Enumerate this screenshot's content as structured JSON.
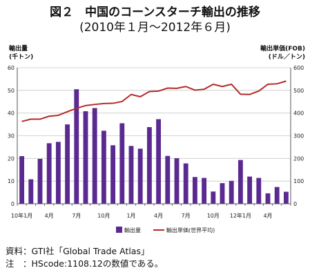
{
  "title": {
    "line1": "図２　中国のコーンスターチ輸出の推移",
    "line2": "(2010年１月～2012年６月)"
  },
  "axis_titles": {
    "left_line1": "輸出量",
    "left_line2": "(千トン)",
    "right_line1": "輸出単価(FOB)",
    "right_line2": "(ドル／トン)"
  },
  "notes": {
    "source": "資料：GTI社「Global Trade Atlas」",
    "note": "注　：HScode:1108.12の数値である。"
  },
  "colors": {
    "bar": "#5b2a91",
    "line": "#b32a26",
    "grid": "#c8c8c8",
    "axis": "#555555"
  },
  "chart_data": {
    "type": "bar+line",
    "x_tick_labels": [
      {
        "index": 0,
        "label": "10年1月"
      },
      {
        "index": 3,
        "label": "4月"
      },
      {
        "index": 6,
        "label": "7月"
      },
      {
        "index": 9,
        "label": "10月"
      },
      {
        "index": 12,
        "label": "1月"
      },
      {
        "index": 15,
        "label": "4月"
      },
      {
        "index": 18,
        "label": "7月"
      },
      {
        "index": 21,
        "label": "10月"
      },
      {
        "index": 24,
        "label": "12年1月"
      },
      {
        "index": 27,
        "label": "4月"
      }
    ],
    "y_left": {
      "min": 0,
      "max": 60,
      "ticks": [
        0,
        10,
        20,
        30,
        40,
        50,
        60
      ]
    },
    "y_right": {
      "min": 0,
      "max": 600,
      "ticks": [
        0,
        100,
        200,
        300,
        400,
        500,
        600
      ]
    },
    "grid": true,
    "legend_position": "bottom",
    "series": [
      {
        "name": "輸出量",
        "kind": "bar",
        "axis": "left",
        "values": [
          21,
          10.8,
          19.8,
          26.7,
          27.3,
          35,
          50.5,
          40.8,
          42.2,
          32.2,
          25.8,
          35.5,
          25.5,
          24.3,
          33.8,
          37.3,
          21.1,
          20.1,
          17.8,
          11.8,
          11.4,
          5.4,
          9.1,
          10.1,
          19.3,
          12,
          11.4,
          4.6,
          7.4,
          5.3
        ]
      },
      {
        "name": "輸出単価(世界平均)",
        "kind": "line",
        "axis": "right",
        "values": [
          363,
          373,
          373,
          386,
          390,
          406,
          421,
          433,
          438,
          442,
          443,
          451,
          482,
          472,
          495,
          497,
          510,
          509,
          517,
          501,
          505,
          527,
          517,
          527,
          483,
          482,
          497,
          527,
          529,
          541
        ]
      }
    ]
  }
}
